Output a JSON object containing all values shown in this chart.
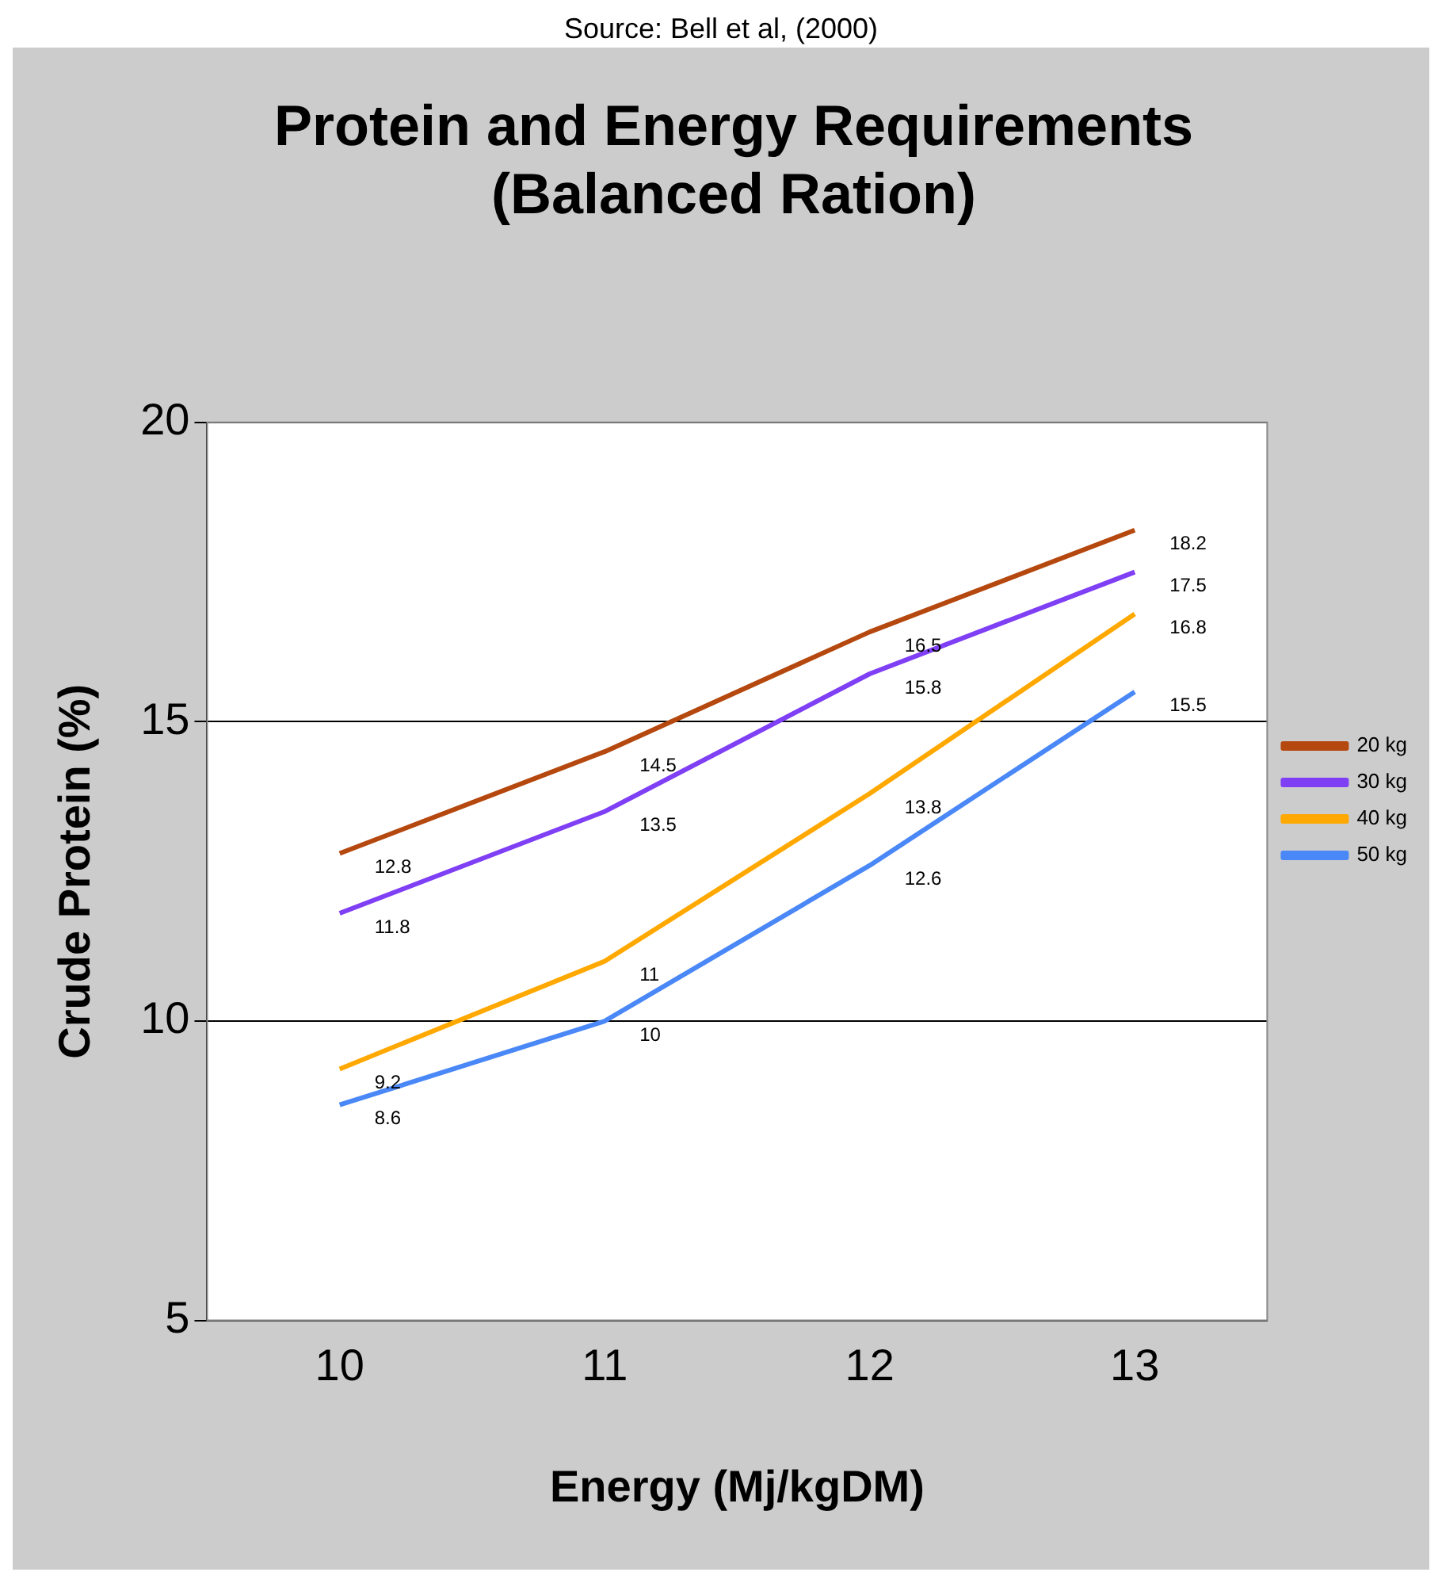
{
  "chart_data": {
    "type": "line",
    "title": [
      "Protein and Energy Requirements",
      "(Balanced Ration)"
    ],
    "annotations": [
      "Source: Bell et al, (2000)"
    ],
    "xlabel": "Energy (Mj/kgDM)",
    "ylabel": "Crude Protein (%)",
    "categories": [
      "10",
      "11",
      "12",
      "13"
    ],
    "ylim": [
      5,
      20
    ],
    "yticks": [
      5,
      10,
      15,
      20
    ],
    "grid": "y",
    "legend": "right",
    "marker": "none",
    "data_labels": true,
    "series": [
      {
        "name": "20 kg",
        "color": "#b5480f",
        "values": [
          12.8,
          14.5,
          16.5,
          18.2
        ]
      },
      {
        "name": "30 kg",
        "color": "#7f3ff5",
        "values": [
          11.8,
          13.5,
          15.8,
          17.5
        ]
      },
      {
        "name": "40 kg",
        "color": "#ffa800",
        "values": [
          9.2,
          11,
          13.8,
          16.8
        ]
      },
      {
        "name": "50 kg",
        "color": "#4a88f7",
        "values": [
          8.6,
          10,
          12.6,
          15.5
        ]
      }
    ]
  }
}
